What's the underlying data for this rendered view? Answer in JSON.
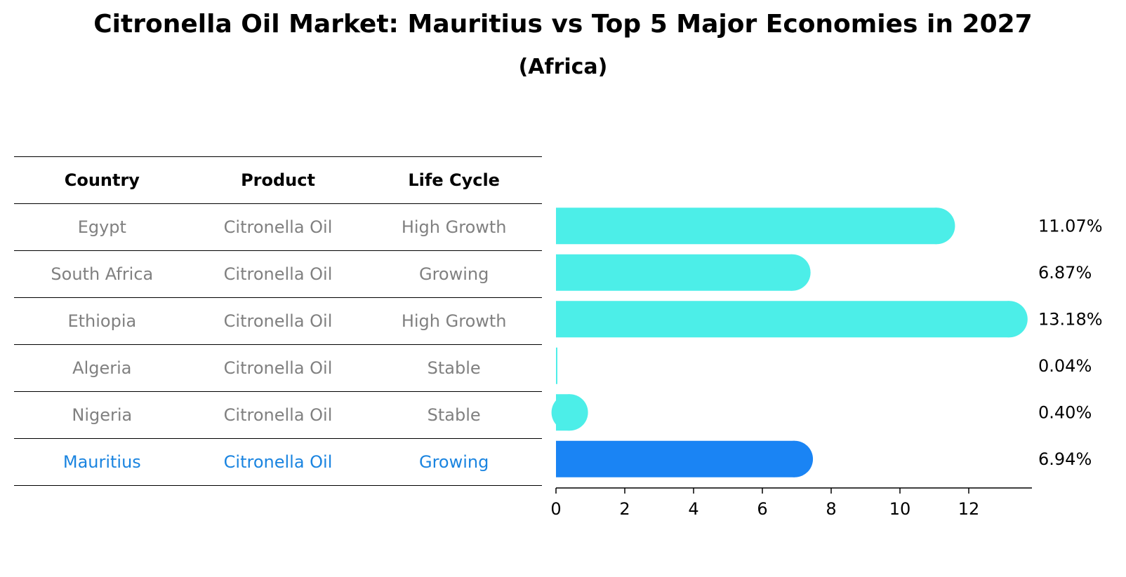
{
  "title": "Citronella Oil Market: Mauritius vs Top 5 Major Economies in 2027",
  "subtitle": "(Africa)",
  "table": {
    "headers": [
      "Country",
      "Product",
      "Life Cycle"
    ],
    "rows": [
      [
        "Egypt",
        "Citronella Oil",
        "High Growth"
      ],
      [
        "South Africa",
        "Citronella Oil",
        "Growing"
      ],
      [
        "Ethiopia",
        "Citronella Oil",
        "High Growth"
      ],
      [
        "Algeria",
        "Citronella Oil",
        "Stable"
      ],
      [
        "Nigeria",
        "Citronella Oil",
        "Stable"
      ],
      [
        "Mauritius",
        "Citronella Oil",
        "Growing"
      ]
    ],
    "highlight_row": 5
  },
  "chart_data": {
    "type": "bar",
    "orientation": "horizontal",
    "categories": [
      "Egypt",
      "South Africa",
      "Ethiopia",
      "Algeria",
      "Nigeria",
      "Mauritius"
    ],
    "values": [
      11.07,
      6.87,
      13.18,
      0.04,
      0.4,
      6.94
    ],
    "value_labels": [
      "11.07%",
      "6.87%",
      "13.18%",
      "0.04%",
      "0.40%",
      "6.94%"
    ],
    "xlim": [
      0,
      13.84
    ],
    "xticks": [
      0,
      2,
      4,
      6,
      8,
      10,
      12
    ],
    "grid": false,
    "colors": {
      "default": "#4ceee8",
      "highlight": "#1a84f4"
    },
    "highlight_index": 5
  }
}
